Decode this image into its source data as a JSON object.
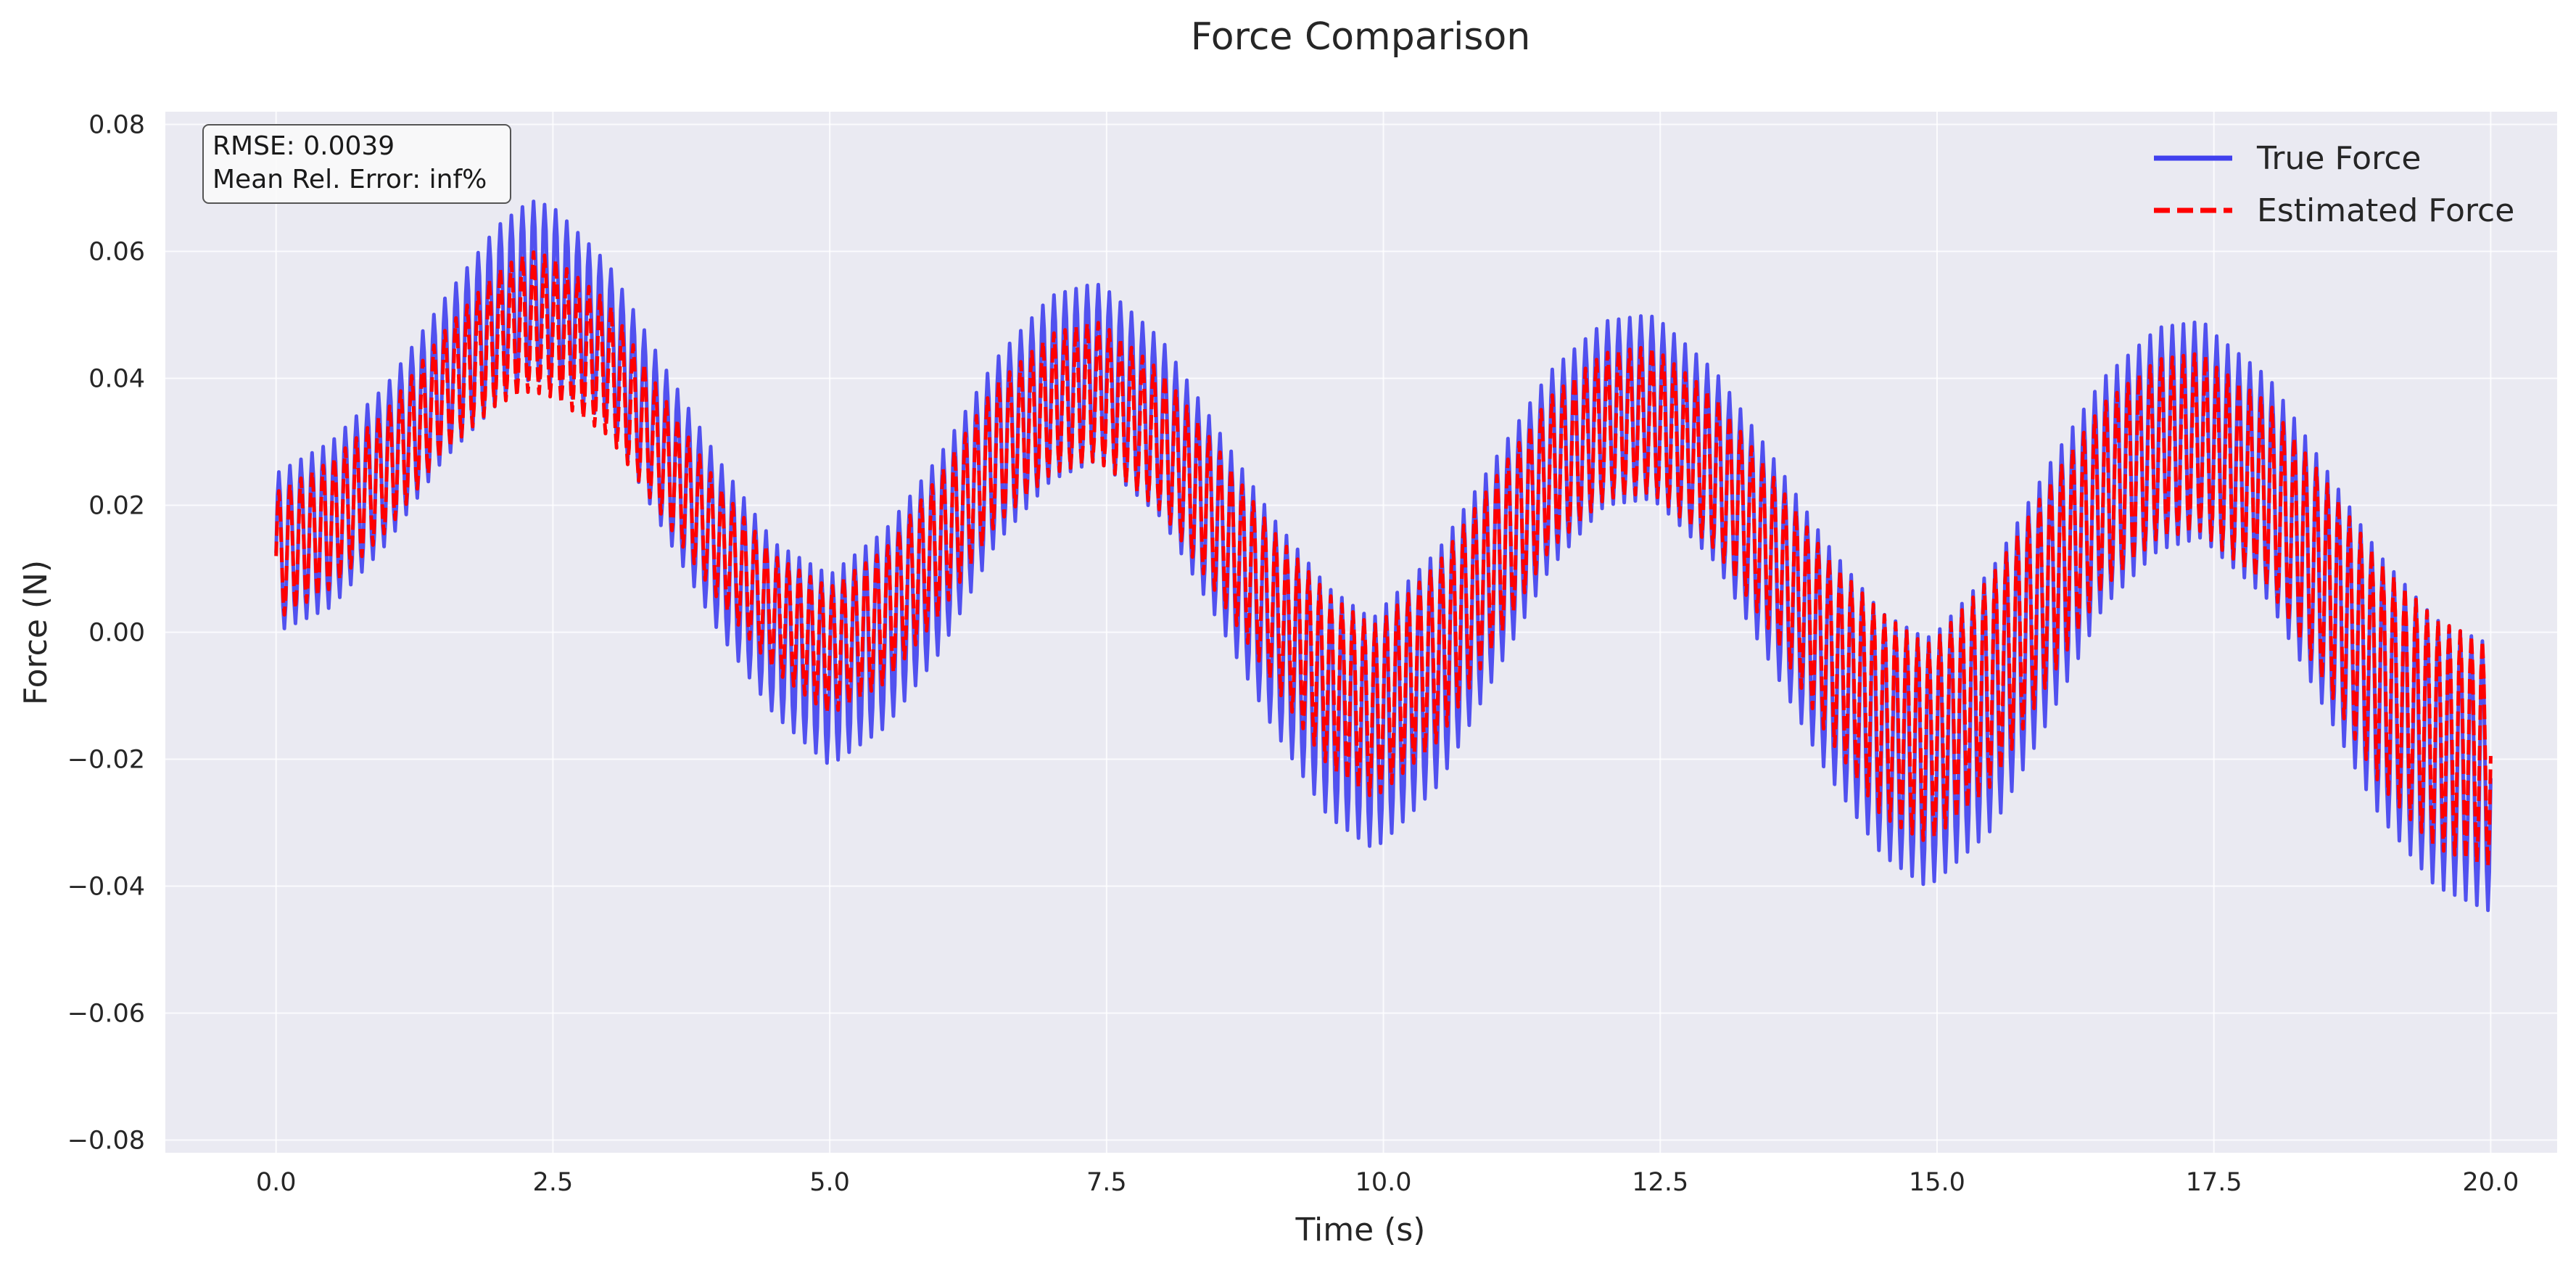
{
  "chart_data": {
    "type": "line",
    "title": "Force Comparison",
    "xlabel": "Time (s)",
    "ylabel": "Force (N)",
    "xlim": [
      -1.0,
      20.6
    ],
    "ylim": [
      -0.082,
      0.082
    ],
    "grid": true,
    "legend_position": "top-right",
    "x_ticks": [
      0.0,
      2.5,
      5.0,
      7.5,
      10.0,
      12.5,
      15.0,
      17.5,
      20.0
    ],
    "x_tick_labels": [
      "0.0",
      "2.5",
      "5.0",
      "7.5",
      "10.0",
      "12.5",
      "15.0",
      "17.5",
      "20.0"
    ],
    "y_ticks": [
      -0.08,
      -0.06,
      -0.04,
      -0.02,
      0.0,
      0.02,
      0.04,
      0.06,
      0.08
    ],
    "y_tick_labels": [
      "−0.08",
      "−0.06",
      "−0.04",
      "−0.02",
      "0.00",
      "0.02",
      "0.04",
      "0.06",
      "0.08"
    ],
    "annotation": {
      "line1": "RMSE: 0.0039",
      "line2": "Mean Rel. Error: inf%"
    },
    "series": [
      {
        "name": "True Force",
        "color": "#4040ee",
        "style": "solid",
        "envelope": {
          "x": [
            0.0,
            0.5,
            1.0,
            1.5,
            2.0,
            2.3,
            2.5,
            3.0,
            3.5,
            4.0,
            4.5,
            5.0,
            5.5,
            6.0,
            6.5,
            7.0,
            7.4,
            7.5,
            8.0,
            8.5,
            9.0,
            9.5,
            9.9,
            10.0,
            10.5,
            11.0,
            11.5,
            12.0,
            12.4,
            12.5,
            13.0,
            13.5,
            14.0,
            14.5,
            14.9,
            15.0,
            15.5,
            16.0,
            16.5,
            17.0,
            17.4,
            17.5,
            18.0,
            18.5,
            19.0,
            19.5,
            20.0
          ],
          "upper": [
            0.025,
            0.03,
            0.039,
            0.052,
            0.064,
            0.068,
            0.067,
            0.058,
            0.042,
            0.027,
            0.014,
            0.009,
            0.016,
            0.028,
            0.043,
            0.053,
            0.055,
            0.054,
            0.046,
            0.032,
            0.018,
            0.007,
            0.002,
            0.004,
            0.013,
            0.027,
            0.041,
            0.049,
            0.05,
            0.049,
            0.041,
            0.028,
            0.014,
            0.003,
            -0.001,
            0.0,
            0.01,
            0.026,
            0.04,
            0.048,
            0.049,
            0.047,
            0.04,
            0.026,
            0.012,
            0.002,
            -0.002
          ],
          "lower": [
            0.0,
            0.004,
            0.014,
            0.027,
            0.036,
            0.04,
            0.039,
            0.033,
            0.016,
            0.0,
            -0.013,
            -0.021,
            -0.015,
            -0.003,
            0.014,
            0.024,
            0.027,
            0.026,
            0.018,
            0.002,
            -0.015,
            -0.029,
            -0.034,
            -0.033,
            -0.024,
            -0.007,
            0.01,
            0.02,
            0.021,
            0.02,
            0.011,
            -0.005,
            -0.022,
            -0.035,
            -0.04,
            -0.039,
            -0.031,
            -0.014,
            0.004,
            0.013,
            0.015,
            0.013,
            0.005,
            -0.012,
            -0.029,
            -0.04,
            -0.044
          ]
        }
      },
      {
        "name": "Estimated Force",
        "color": "#ff0000",
        "style": "dashed",
        "envelope": {
          "x": [
            0.0,
            0.5,
            1.0,
            1.5,
            2.0,
            2.3,
            2.5,
            3.0,
            3.5,
            4.0,
            4.5,
            5.0,
            5.5,
            6.0,
            6.5,
            7.0,
            7.4,
            7.5,
            8.0,
            8.5,
            9.0,
            9.5,
            9.9,
            10.0,
            10.5,
            11.0,
            11.5,
            12.0,
            12.4,
            12.5,
            13.0,
            13.5,
            14.0,
            14.5,
            14.9,
            15.0,
            15.5,
            16.0,
            16.5,
            17.0,
            17.4,
            17.5,
            18.0,
            18.5,
            19.0,
            19.5,
            20.0
          ],
          "upper": [
            0.022,
            0.027,
            0.035,
            0.047,
            0.057,
            0.06,
            0.059,
            0.052,
            0.037,
            0.023,
            0.012,
            0.007,
            0.013,
            0.025,
            0.039,
            0.047,
            0.049,
            0.048,
            0.041,
            0.029,
            0.016,
            0.006,
            0.001,
            0.002,
            0.011,
            0.024,
            0.037,
            0.044,
            0.045,
            0.044,
            0.037,
            0.025,
            0.012,
            0.003,
            -0.002,
            -0.001,
            0.009,
            0.023,
            0.036,
            0.043,
            0.044,
            0.042,
            0.036,
            0.024,
            0.011,
            0.002,
            -0.002
          ],
          "lower": [
            0.002,
            0.007,
            0.016,
            0.028,
            0.036,
            0.038,
            0.037,
            0.031,
            0.018,
            0.005,
            -0.006,
            -0.013,
            -0.008,
            0.003,
            0.017,
            0.025,
            0.027,
            0.026,
            0.019,
            0.006,
            -0.008,
            -0.021,
            -0.026,
            -0.025,
            -0.017,
            -0.002,
            0.013,
            0.021,
            0.022,
            0.021,
            0.013,
            0.0,
            -0.016,
            -0.029,
            -0.033,
            -0.032,
            -0.024,
            -0.008,
            0.007,
            0.015,
            0.016,
            0.014,
            0.007,
            -0.008,
            -0.024,
            -0.034,
            -0.037
          ]
        }
      }
    ]
  }
}
